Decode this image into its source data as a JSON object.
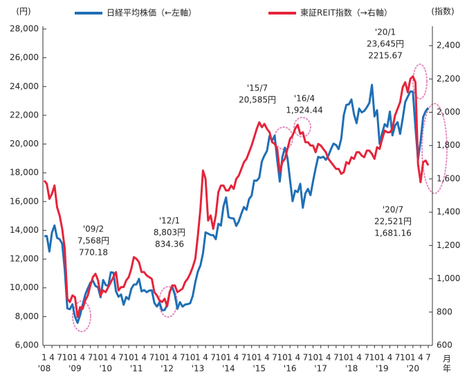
{
  "chart_data": {
    "type": "line",
    "legend": "top",
    "y_unit_label": "(円)",
    "y2_unit_label": "(指数)",
    "x_unit_labels": [
      "月",
      "年"
    ],
    "categories": [
      "1",
      null,
      null,
      "4",
      null,
      null,
      "7",
      null,
      null,
      "10",
      null,
      null,
      "1",
      null,
      null,
      "4",
      null,
      null,
      "7",
      null,
      null,
      "10",
      null,
      null,
      "1",
      null,
      null,
      "4",
      null,
      null,
      "7",
      null,
      null,
      "10",
      null,
      null,
      "1",
      null,
      null,
      "4",
      null,
      null,
      "7",
      null,
      null,
      "10",
      null,
      null,
      "1",
      null,
      null,
      "4",
      null,
      null,
      "7",
      null,
      null,
      "10",
      null,
      null,
      "1",
      null,
      null,
      "4",
      null,
      null,
      "7",
      null,
      null,
      "10",
      null,
      null,
      "1",
      null,
      null,
      "4",
      null,
      null,
      "7",
      null,
      null,
      "10",
      null,
      null,
      "1",
      null,
      null,
      "4",
      null,
      null,
      "7",
      null,
      null,
      "10",
      null,
      null,
      "1",
      null,
      null,
      "4",
      null,
      null,
      "7",
      null,
      null,
      "10",
      null,
      null,
      "1",
      null,
      null,
      "4",
      null,
      null,
      "7",
      null,
      null,
      "10",
      null,
      null,
      "1",
      null,
      null,
      "4",
      null,
      null,
      "7",
      null,
      null,
      "10",
      null,
      null,
      "1",
      null,
      null,
      "4",
      null,
      null,
      "7",
      null,
      null,
      "10",
      null,
      null,
      "1",
      null,
      null,
      "4",
      null,
      null,
      "7"
    ],
    "years": [
      "'08",
      "'09",
      "'10",
      "'11",
      "'12",
      "'13",
      "'14",
      "'15",
      "'16",
      "'17",
      "'18",
      "'19",
      "'20"
    ],
    "ylim": [
      6000,
      28000
    ],
    "yticks": [
      {
        "value": 6000,
        "label": "6,000"
      },
      {
        "value": 8000,
        "label": "8,000"
      },
      {
        "value": 10000,
        "label": "10,000"
      },
      {
        "value": 12000,
        "label": "12,000"
      },
      {
        "value": 14000,
        "label": "14,000"
      },
      {
        "value": 16000,
        "label": "16,000"
      },
      {
        "value": 18000,
        "label": "18,000"
      },
      {
        "value": 20000,
        "label": "20,000"
      },
      {
        "value": 22000,
        "label": "22,000"
      },
      {
        "value": 24000,
        "label": "24,000"
      },
      {
        "value": 26000,
        "label": "26,000"
      },
      {
        "value": 28000,
        "label": "28,000"
      }
    ],
    "y2lim": [
      600,
      2500
    ],
    "y2ticks": [
      600,
      800,
      {
        "value": 1000,
        "label": "1,000"
      },
      {
        "value": 1200,
        "label": "1,200"
      },
      {
        "value": 1400,
        "label": "1,400"
      },
      {
        "value": 1600,
        "label": "1,600"
      },
      {
        "value": 1800,
        "label": "1,800"
      },
      {
        "value": 2000,
        "label": "2,000"
      },
      {
        "value": 2200,
        "label": "2,200"
      },
      {
        "value": 2400,
        "label": "2,400"
      }
    ],
    "series": [
      {
        "name": "日経平均株価（←左軸）",
        "color": "#1f6fb5",
        "axis": "y",
        "values": [
          13592,
          13603,
          12525,
          13849,
          14338,
          13481,
          13376,
          13072,
          11259,
          8576,
          8512,
          8859,
          7994,
          7568,
          8109,
          8828,
          9522,
          9958,
          10356,
          10492,
          10133,
          10034,
          9345,
          10546,
          10198,
          10126,
          11089,
          11057,
          9768,
          9382,
          9537,
          8824,
          9369,
          9202,
          9937,
          10228,
          10237,
          10624,
          9755,
          9849,
          9693,
          9816,
          9833,
          8955,
          8700,
          8988,
          8434,
          8455,
          8803,
          9723,
          10083,
          9520,
          8542,
          9006,
          8695,
          8839,
          8870,
          8928,
          9446,
          10395,
          11138,
          11559,
          12397,
          13860,
          13774,
          13677,
          13668,
          13388,
          14455,
          14327,
          15661,
          16291,
          14914,
          14841,
          14827,
          14304,
          14632,
          15162,
          15620,
          15425,
          16173,
          16413,
          17459,
          17450,
          17674,
          18797,
          19206,
          19520,
          20563,
          20235,
          20585,
          18890,
          17388,
          19083,
          19747,
          19033,
          17518,
          16026,
          16758,
          16666,
          17234,
          15575,
          16569,
          16887,
          16449,
          17425,
          18308,
          19114,
          19041,
          19118,
          18909,
          19196,
          19650,
          20033,
          19925,
          19646,
          20356,
          22011,
          22724,
          22764,
          23098,
          22068,
          21454,
          22467,
          22201,
          22304,
          22553,
          22865,
          24120,
          21920,
          22351,
          20015,
          20773,
          21385,
          21205,
          22258,
          20601,
          21276,
          21521,
          20704,
          21756,
          22927,
          23293,
          23657,
          23645,
          21142,
          18917,
          20193,
          21877,
          22288,
          22521
        ]
      },
      {
        "name": "東証REIT指数（→右軸）",
        "color": "#e5243b",
        "axis": "y2",
        "values": [
          1590,
          1570,
          1480,
          1510,
          1560,
          1430,
          1380,
          1300,
          1180,
          880,
          860,
          900,
          890,
          770.18,
          830,
          820,
          870,
          900,
          960,
          1010,
          1030,
          990,
          900,
          930,
          920,
          950,
          980,
          1010,
          1040,
          930,
          950,
          950,
          990,
          1010,
          1060,
          1130,
          1120,
          1100,
          1040,
          1040,
          1020,
          1010,
          1000,
          920,
          900,
          870,
          860,
          880,
          834.36,
          920,
          960,
          960,
          920,
          930,
          940,
          980,
          1000,
          1030,
          1070,
          1120,
          1260,
          1420,
          1650,
          1600,
          1350,
          1380,
          1300,
          1380,
          1520,
          1560,
          1560,
          1530,
          1530,
          1560,
          1540,
          1600,
          1620,
          1660,
          1700,
          1720,
          1760,
          1800,
          1850,
          1900,
          1940,
          1910,
          1930,
          1900,
          1880,
          1820,
          1810,
          1780,
          1640,
          1700,
          1720,
          1780,
          1840,
          1860,
          1900,
          1924.44,
          1870,
          1880,
          1820,
          1820,
          1800,
          1800,
          1760,
          1810,
          1800,
          1780,
          1760,
          1720,
          1700,
          1680,
          1660,
          1660,
          1630,
          1640,
          1700,
          1690,
          1730,
          1720,
          1760,
          1760,
          1740,
          1730,
          1770,
          1770,
          1750,
          1720,
          1790,
          1780,
          1840,
          1890,
          1880,
          1880,
          1900,
          1980,
          2020,
          2060,
          2150,
          2180,
          2120,
          2200,
          2215.67,
          2180,
          1690,
          1580,
          1700,
          1710,
          1681.16
        ]
      }
    ],
    "annotations": [
      {
        "lines": [
          "'09/2",
          "7,568円",
          "770.18"
        ]
      },
      {
        "lines": [
          "'12/1",
          "8,803円",
          "834.36"
        ]
      },
      {
        "lines": [
          "'15/7",
          "20,585円"
        ]
      },
      {
        "lines": [
          "'16/4",
          "1,924.44"
        ]
      },
      {
        "lines": [
          "'20/1",
          "23,645円",
          "2215.67"
        ]
      },
      {
        "lines": [
          "'20/7",
          "22,521円",
          "1,681.16"
        ]
      }
    ]
  }
}
